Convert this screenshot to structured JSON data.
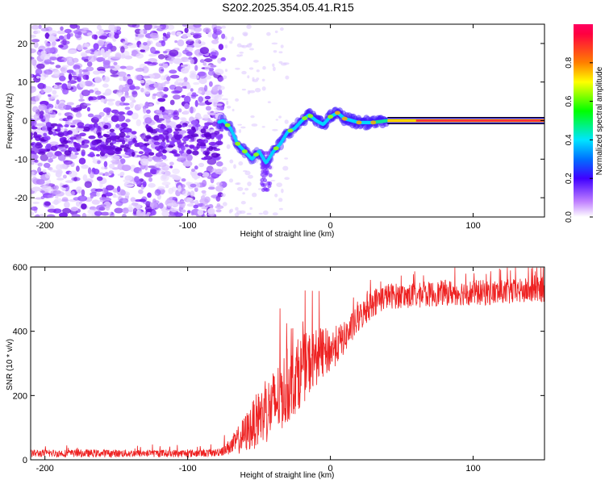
{
  "title": "S202.2025.354.05.41.R15",
  "chart_data": [
    {
      "type": "heatmap",
      "name": "spectrogram",
      "xlabel": "Height of straight line (km)",
      "ylabel": "Frequency (Hz)",
      "xlim": [
        -210,
        150
      ],
      "ylim": [
        -25,
        25
      ],
      "xticks": [
        -200,
        -100,
        0,
        100
      ],
      "xtick_labels": [
        "-200",
        "-100",
        "0",
        "100"
      ],
      "yticks": [
        -20,
        -10,
        0,
        10,
        20
      ],
      "ytick_labels": [
        "-20",
        "-10",
        "0",
        "10",
        "20"
      ],
      "description_track": [
        {
          "x": -150,
          "f": -5
        },
        {
          "x": -120,
          "f": -4
        },
        {
          "x": -100,
          "f": -3
        },
        {
          "x": -75,
          "f": 0
        },
        {
          "x": -70,
          "f": -2
        },
        {
          "x": -65,
          "f": -6
        },
        {
          "x": -60,
          "f": -8
        },
        {
          "x": -55,
          "f": -10
        },
        {
          "x": -50,
          "f": -8
        },
        {
          "x": -45,
          "f": -11
        },
        {
          "x": -40,
          "f": -8
        },
        {
          "x": -35,
          "f": -6
        },
        {
          "x": -30,
          "f": -3
        },
        {
          "x": -25,
          "f": -2
        },
        {
          "x": -20,
          "f": 0
        },
        {
          "x": -15,
          "f": 1.5
        },
        {
          "x": -10,
          "f": 0
        },
        {
          "x": -5,
          "f": -1
        },
        {
          "x": 0,
          "f": 1
        },
        {
          "x": 5,
          "f": 2
        },
        {
          "x": 10,
          "f": 0.5
        },
        {
          "x": 20,
          "f": -0.5
        },
        {
          "x": 30,
          "f": -0.5
        },
        {
          "x": 40,
          "f": 0
        },
        {
          "x": 60,
          "f": 0
        },
        {
          "x": 80,
          "f": 0
        },
        {
          "x": 100,
          "f": 0
        },
        {
          "x": 120,
          "f": 0
        },
        {
          "x": 150,
          "f": 0
        }
      ]
    },
    {
      "type": "colorbar",
      "name": "colorbar",
      "label": "Normalized spectral amplitude",
      "range": [
        0,
        1
      ],
      "ticks": [
        0.0,
        0.2,
        0.4,
        0.6,
        0.8
      ],
      "tick_labels": [
        "0.0",
        "0.2",
        "0.4",
        "0.6",
        "0.8"
      ],
      "colors": [
        "#ffffff",
        "#8000ff",
        "#0000ff",
        "#00e5ff",
        "#00ff00",
        "#ffff00",
        "#ff8000",
        "#ff0040"
      ]
    },
    {
      "type": "line",
      "name": "snr",
      "xlabel": "Height of straight line (km)",
      "ylabel": "SNR (10 * v/v)",
      "xlim": [
        -210,
        150
      ],
      "ylim": [
        0,
        600
      ],
      "xticks": [
        -200,
        -100,
        0,
        100
      ],
      "xtick_labels": [
        "-200",
        "-100",
        "0",
        "100"
      ],
      "yticks": [
        0,
        200,
        400,
        600
      ],
      "ytick_labels": [
        "0",
        "200",
        "400",
        "600"
      ],
      "color": "#ee2222",
      "series": [
        {
          "name": "SNR envelope",
          "x": [
            -210,
            -150,
            -100,
            -80,
            -70,
            -60,
            -50,
            -40,
            -30,
            -20,
            -10,
            0,
            10,
            20,
            30,
            40,
            60,
            80,
            100,
            120,
            150
          ],
          "y": [
            20,
            20,
            20,
            22,
            40,
            80,
            130,
            170,
            230,
            280,
            320,
            340,
            380,
            440,
            490,
            510,
            510,
            520,
            520,
            520,
            530
          ],
          "spread": [
            12,
            12,
            12,
            12,
            25,
            60,
            90,
            110,
            120,
            110,
            90,
            70,
            50,
            45,
            45,
            40,
            40,
            40,
            40,
            40,
            40
          ]
        }
      ]
    }
  ]
}
